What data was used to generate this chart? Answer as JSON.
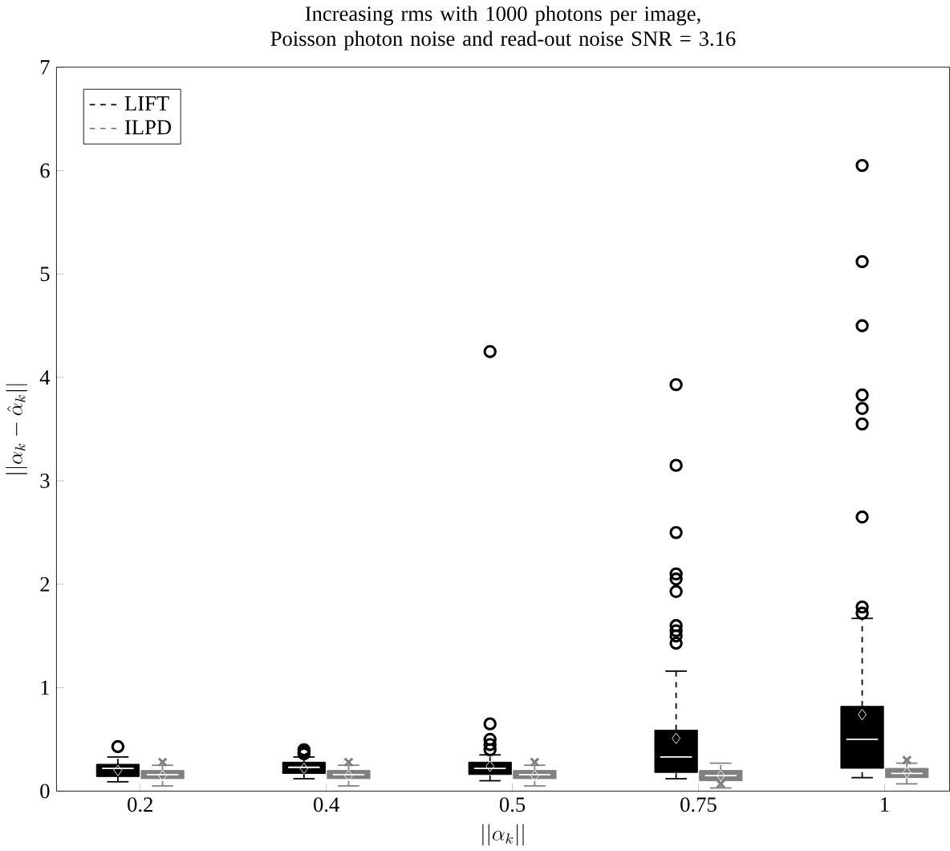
{
  "chart_data": {
    "type": "box",
    "title": "Increasing rms with 1000 photons per image, Poisson photon noise and read-out noise SNR = 3.16",
    "xlabel": "||\\alpha_k||",
    "ylabel": "||\\alpha_k - \\hat{\\alpha}_k||",
    "categories": [
      "0.2",
      "0.4",
      "0.5",
      "0.75",
      "1"
    ],
    "ylim": [
      0,
      7
    ],
    "yticks": [
      0,
      1,
      2,
      3,
      4,
      5,
      6,
      7
    ],
    "grid": false,
    "legend": "top left",
    "line_style": "dashed",
    "series": [
      {
        "name": "LIFT",
        "color": "#000000",
        "marker": "circle",
        "boxes": [
          {
            "low": 0.09,
            "q1": 0.14,
            "median": 0.22,
            "q3": 0.26,
            "high": 0.33,
            "mean": 0.2,
            "outliers": [
              0.43
            ]
          },
          {
            "low": 0.12,
            "q1": 0.17,
            "median": 0.23,
            "q3": 0.28,
            "high": 0.33,
            "mean": 0.22,
            "outliers": [
              0.36,
              0.38,
              0.4
            ]
          },
          {
            "low": 0.1,
            "q1": 0.16,
            "median": 0.22,
            "q3": 0.28,
            "high": 0.35,
            "mean": 0.24,
            "outliers": [
              0.4,
              0.45,
              0.5,
              0.65,
              4.25
            ]
          },
          {
            "low": 0.12,
            "q1": 0.18,
            "median": 0.33,
            "q3": 0.59,
            "high": 1.16,
            "mean": 0.51,
            "outliers": [
              1.43,
              1.5,
              1.55,
              1.6,
              1.93,
              2.05,
              2.1,
              2.5,
              3.15,
              3.93
            ]
          },
          {
            "low": 0.13,
            "q1": 0.22,
            "median": 0.5,
            "q3": 0.82,
            "high": 1.67,
            "mean": 0.74,
            "outliers": [
              1.72,
              1.78,
              2.65,
              3.55,
              3.7,
              3.83,
              4.5,
              5.12,
              6.05
            ]
          }
        ]
      },
      {
        "name": "ILPD",
        "color": "#808080",
        "marker": "cross",
        "boxes": [
          {
            "low": 0.05,
            "q1": 0.12,
            "median": 0.16,
            "q3": 0.2,
            "high": 0.25,
            "mean": 0.15,
            "outliers": [
              0.28
            ]
          },
          {
            "low": 0.05,
            "q1": 0.12,
            "median": 0.16,
            "q3": 0.2,
            "high": 0.25,
            "mean": 0.15,
            "outliers": [
              0.28
            ]
          },
          {
            "low": 0.05,
            "q1": 0.12,
            "median": 0.16,
            "q3": 0.2,
            "high": 0.25,
            "mean": 0.15,
            "outliers": [
              0.28
            ]
          },
          {
            "low": 0.03,
            "q1": 0.1,
            "median": 0.15,
            "q3": 0.2,
            "high": 0.27,
            "mean": 0.15,
            "outliers": [
              0.07
            ]
          },
          {
            "low": 0.07,
            "q1": 0.13,
            "median": 0.17,
            "q3": 0.22,
            "high": 0.27,
            "mean": 0.18,
            "outliers": [
              0.3
            ]
          }
        ]
      }
    ]
  }
}
